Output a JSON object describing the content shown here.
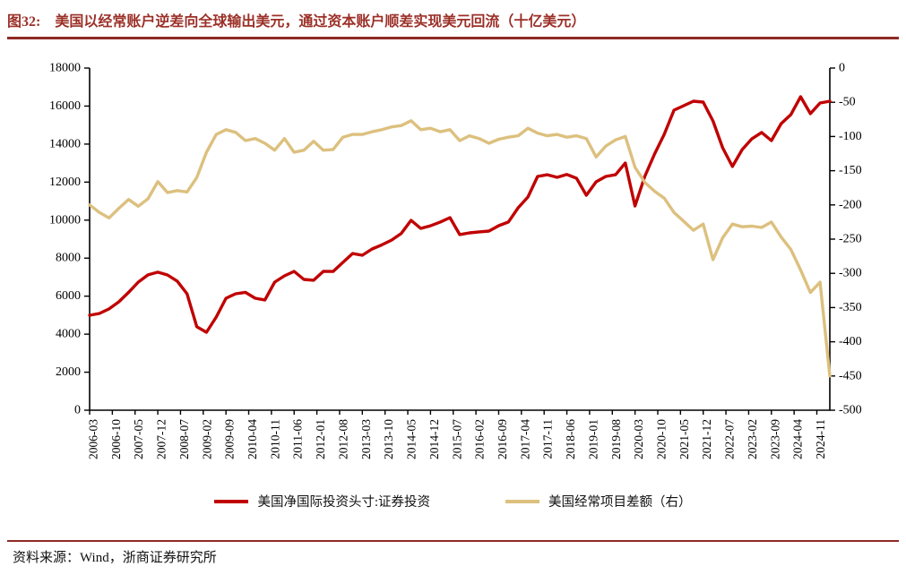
{
  "title": {
    "prefix": "图32:",
    "text": "美国以经常账户逆差向全球输出美元，通过资本账户顺差实现美元回流（十亿美元）"
  },
  "source": "资料来源：Wind，浙商证券研究所",
  "colors": {
    "title_red": "#9b3028",
    "rule_red": "#8e2a24",
    "axis_black": "#000000",
    "series_red": "#c00000",
    "series_tan": "#dcc07e"
  },
  "chart_data": {
    "type": "line",
    "title": "",
    "x_tick_labels": [
      "2006-03",
      "2006-10",
      "2007-05",
      "2007-12",
      "2008-07",
      "2009-02",
      "2009-09",
      "2010-04",
      "2010-11",
      "2011-06",
      "2012-01",
      "2012-08",
      "2013-03",
      "2013-10",
      "2014-05",
      "2014-12",
      "2015-07",
      "2016-02",
      "2016-09",
      "2017-04",
      "2017-11",
      "2018-06",
      "2019-01",
      "2019-08",
      "2020-03",
      "2020-10",
      "2021-05",
      "2021-12",
      "2022-07",
      "2023-02",
      "2023-09",
      "2024-04",
      "2024-11"
    ],
    "x_start": "2006-03",
    "x_points_frequency": "quarterly",
    "x_tick_interval_months": 7,
    "left_axis": {
      "min": 0,
      "max": 18000,
      "ticks": [
        0,
        2000,
        4000,
        6000,
        8000,
        10000,
        12000,
        14000,
        16000,
        18000
      ]
    },
    "right_axis": {
      "min": -500,
      "max": 0,
      "ticks": [
        0,
        -50,
        -100,
        -150,
        -200,
        -250,
        -300,
        -350,
        -400,
        -450,
        -500
      ]
    },
    "grid": false,
    "legend_position": "bottom",
    "series": [
      {
        "name": "美国净国际投资头寸:证券投资",
        "axis": "left",
        "color": "#c00000",
        "values": [
          4995,
          5090,
          5330,
          5700,
          6200,
          6740,
          7120,
          7260,
          7115,
          6790,
          6125,
          4390,
          4100,
          4900,
          5890,
          6125,
          6200,
          5890,
          5800,
          6740,
          7070,
          7305,
          6880,
          6835,
          7305,
          7300,
          7775,
          8240,
          8150,
          8480,
          8700,
          8950,
          9300,
          9990,
          9565,
          9700,
          9900,
          10130,
          9240,
          9330,
          9380,
          9425,
          9705,
          9900,
          10650,
          11215,
          12300,
          12390,
          12250,
          12400,
          12200,
          11310,
          12015,
          12300,
          12390,
          13005,
          10745,
          12300,
          13475,
          14515,
          15785,
          16020,
          16255,
          16210,
          15220,
          13805,
          12820,
          13710,
          14280,
          14610,
          14185,
          15080,
          15550,
          16490,
          15600,
          16160,
          16255
        ]
      },
      {
        "name": "美国经常项目差额（右）",
        "axis": "right",
        "color": "#dcc07e",
        "values": [
          -200,
          -211,
          -219,
          -205,
          -192,
          -202,
          -191,
          -166,
          -182,
          -179,
          -181,
          -160,
          -123,
          -97,
          -90,
          -94,
          -106,
          -103,
          -110,
          -120,
          -103,
          -123,
          -120,
          -107,
          -120,
          -119,
          -101,
          -97,
          -97,
          -93,
          -90,
          -86,
          -84,
          -77,
          -90,
          -88,
          -93,
          -90,
          -106,
          -99,
          -103,
          -110,
          -104,
          -101,
          -99,
          -88,
          -95,
          -99,
          -97,
          -101,
          -99,
          -103,
          -130,
          -114,
          -105,
          -100,
          -145,
          -167,
          -180,
          -190,
          -211,
          -224,
          -237,
          -228,
          -280,
          -248,
          -228,
          -232,
          -231,
          -233,
          -225,
          -247,
          -265,
          -295,
          -328,
          -313,
          -450
        ]
      }
    ]
  }
}
